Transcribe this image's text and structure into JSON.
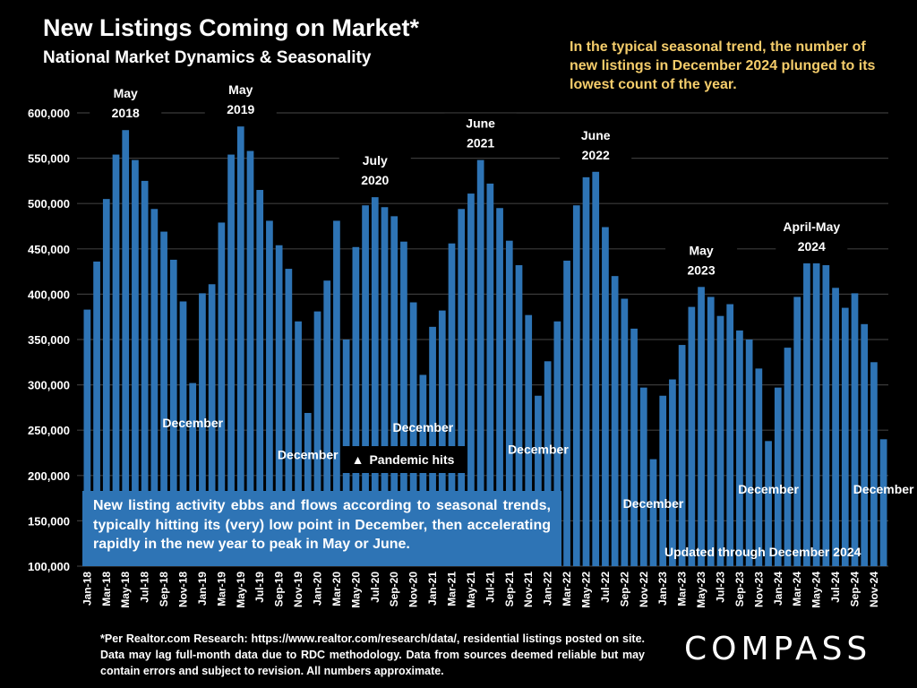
{
  "header": {
    "title": "New Listings Coming on Market*",
    "subtitle": "National Market Dynamics & Seasonality",
    "insight": "In the typical seasonal trend, the number of new listings in December 2024 plunged to its lowest count of the year."
  },
  "callout": {
    "text": "New listing activity ebbs and flows according to seasonal trends, typically hitting its (very) low point in December, then accelerating rapidly in the new year to peak in May or June.",
    "pandemic_icon": "triangle-up-icon",
    "pandemic_glyph": "▲",
    "pandemic_label": "Pandemic hits",
    "updated_label": "Updated through December 2024"
  },
  "footnote": "*Per Realtor.com Research:  https://www.realtor.com/research/data/, residential listings posted on site. Data may lag full-month data due to RDC methodology. Data from sources deemed reliable but may contain errors and subject to revision. All numbers approximate.",
  "brand": {
    "logo_text": "COMPASS"
  },
  "colors": {
    "bar": "#2e74b5",
    "background": "#000000",
    "insight_text": "#f5cd6b"
  },
  "chart_data": {
    "type": "bar",
    "title": "New Listings Coming on Market*",
    "subtitle": "National Market Dynamics & Seasonality",
    "xlabel": "",
    "ylabel": "",
    "ylim": [
      100000,
      600000
    ],
    "yticks": [
      100000,
      150000,
      200000,
      250000,
      300000,
      350000,
      400000,
      450000,
      500000,
      550000,
      600000
    ],
    "ytick_labels": [
      "100,000",
      "150,000",
      "200,000",
      "250,000",
      "300,000",
      "350,000",
      "400,000",
      "450,000",
      "500,000",
      "550,000",
      "600,000"
    ],
    "grid": true,
    "legend": "none",
    "categories": [
      "Jan-18",
      "Feb-18",
      "Mar-18",
      "Apr-18",
      "May-18",
      "Jun-18",
      "Jul-18",
      "Aug-18",
      "Sep-18",
      "Oct-18",
      "Nov-18",
      "Dec-18",
      "Jan-19",
      "Feb-19",
      "Mar-19",
      "Apr-19",
      "May-19",
      "Jun-19",
      "Jul-19",
      "Aug-19",
      "Sep-19",
      "Oct-19",
      "Nov-19",
      "Dec-19",
      "Jan-20",
      "Feb-20",
      "Mar-20",
      "Apr-20",
      "May-20",
      "Jun-20",
      "Jul-20",
      "Aug-20",
      "Sep-20",
      "Oct-20",
      "Nov-20",
      "Dec-20",
      "Jan-21",
      "Feb-21",
      "Mar-21",
      "Apr-21",
      "May-21",
      "Jun-21",
      "Jul-21",
      "Aug-21",
      "Sep-21",
      "Oct-21",
      "Nov-21",
      "Dec-21",
      "Jan-22",
      "Feb-22",
      "Mar-22",
      "Apr-22",
      "May-22",
      "Jun-22",
      "Jul-22",
      "Aug-22",
      "Sep-22",
      "Oct-22",
      "Nov-22",
      "Dec-22",
      "Jan-23",
      "Feb-23",
      "Mar-23",
      "Apr-23",
      "May-23",
      "Jun-23",
      "Jul-23",
      "Aug-23",
      "Sep-23",
      "Oct-23",
      "Nov-23",
      "Dec-23",
      "Jan-24",
      "Feb-24",
      "Mar-24",
      "Apr-24",
      "May-24",
      "Jun-24",
      "Jul-24",
      "Aug-24",
      "Sep-24",
      "Oct-24",
      "Nov-24",
      "Dec-24"
    ],
    "values": [
      383000,
      436000,
      505000,
      554000,
      581000,
      548000,
      525000,
      494000,
      469000,
      438000,
      392000,
      302000,
      401000,
      411000,
      479000,
      554000,
      585000,
      558000,
      515000,
      481000,
      454000,
      428000,
      370000,
      269000,
      381000,
      415000,
      481000,
      350000,
      452000,
      498000,
      507000,
      496000,
      486000,
      458000,
      391000,
      311000,
      364000,
      382000,
      456000,
      494000,
      511000,
      548000,
      522000,
      495000,
      459000,
      432000,
      377000,
      288000,
      326000,
      370000,
      437000,
      498000,
      529000,
      535000,
      474000,
      420000,
      395000,
      362000,
      297000,
      218000,
      288000,
      306000,
      344000,
      386000,
      408000,
      397000,
      376000,
      389000,
      360000,
      350000,
      318000,
      238000,
      297000,
      341000,
      397000,
      434000,
      434000,
      432000,
      407000,
      385000,
      401000,
      367000,
      325000,
      240000
    ],
    "tick_label_every": 2,
    "peak_annotations": [
      {
        "index": 4,
        "lines": [
          "May",
          "2018"
        ]
      },
      {
        "index": 16,
        "lines": [
          "May",
          "2019"
        ]
      },
      {
        "index": 30,
        "lines": [
          "July",
          "2020"
        ]
      },
      {
        "index": 41,
        "lines": [
          "June",
          "2021"
        ]
      },
      {
        "index": 53,
        "lines": [
          "June",
          "2022"
        ]
      },
      {
        "index": 64,
        "lines": [
          "May",
          "2023"
        ]
      },
      {
        "index": 75.5,
        "lines": [
          "April-May",
          "2024"
        ]
      }
    ],
    "december_annotations": [
      {
        "index": 11,
        "label": "December",
        "at_value": 253000
      },
      {
        "index": 23,
        "label": "December",
        "at_value": 218000
      },
      {
        "index": 35,
        "label": "December",
        "at_value": 248000
      },
      {
        "index": 47,
        "label": "December",
        "at_value": 224000
      },
      {
        "index": 59,
        "label": "December",
        "at_value": 164000
      },
      {
        "index": 71,
        "label": "December",
        "at_value": 180000
      },
      {
        "index": 83,
        "label": "December",
        "at_value": 180000
      }
    ]
  }
}
